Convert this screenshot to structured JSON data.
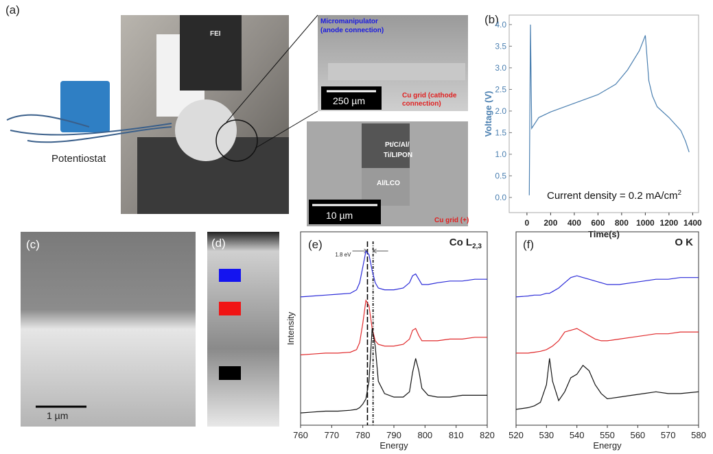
{
  "figure": {
    "panel_a": "(a)",
    "potentiostat": "Potentiostat",
    "fei": "FEI",
    "micromanipulator": [
      "Micromanipulator",
      "(anode connection)"
    ],
    "scale_top": "250 µm",
    "cathode": [
      "Cu grid (cathode",
      "connection)"
    ],
    "layers_top": [
      "Pt/C/Al/",
      "Ti/LIPON"
    ],
    "layer_lco": "Al/LCO",
    "scale_bottom": "10 µm",
    "cu_grid_plus": "Cu grid (+)",
    "panel_b": "(b)",
    "panel_c": "(c)",
    "scale_c": "1 µm",
    "panel_d": "(d)",
    "panel_e": "(e)",
    "panel_f": "(f)"
  },
  "chart_data": [
    {
      "type": "line",
      "xlabel": "Time(s)",
      "ylabel": "Voltage (V)",
      "annotation": "Current density = 0.2 mA/cm",
      "annotation_superscript": "2",
      "color": "#4a7fb0",
      "x": [
        20,
        30,
        40,
        100,
        200,
        400,
        600,
        750,
        850,
        950,
        1000,
        1030,
        1060,
        1100,
        1200,
        1300,
        1340,
        1370
      ],
      "values": [
        0.05,
        4.0,
        1.6,
        1.85,
        1.98,
        2.18,
        2.38,
        2.62,
        2.95,
        3.4,
        3.75,
        2.7,
        2.35,
        2.1,
        1.85,
        1.55,
        1.3,
        1.05
      ],
      "xlim": [
        -150,
        1450
      ],
      "xticks": [
        0,
        200,
        400,
        600,
        800,
        1000,
        1200,
        1400
      ],
      "ylim": [
        -0.35,
        4.22
      ],
      "yticks": [
        {
          "value": 0,
          "label": "0.0"
        },
        0.5,
        {
          "value": 1,
          "label": "1.0"
        },
        1.5,
        {
          "value": 2,
          "label": "2.0"
        },
        2.5,
        {
          "value": 3,
          "label": "3.0"
        },
        3.5,
        {
          "value": 4,
          "label": "4.0"
        }
      ]
    },
    {
      "type": "line",
      "title": "Co L",
      "title_subscript": "2,3",
      "xlabel": "Energy",
      "ylabel": "Intensity",
      "annotation": "1.8 eV",
      "vlines": [
        781.5,
        783.3
      ],
      "x": [
        760,
        764,
        768,
        772,
        776,
        778,
        779,
        780,
        781,
        782,
        783,
        784,
        785,
        787,
        790,
        793,
        795,
        796,
        797,
        798,
        799,
        801,
        804,
        808,
        812,
        816,
        820
      ],
      "series": [
        {
          "color": "#2a2ad8",
          "values": [
            6.8,
            6.85,
            6.9,
            6.95,
            7.0,
            7.2,
            7.6,
            8.5,
            9.4,
            9.2,
            8.3,
            7.6,
            7.3,
            7.2,
            7.2,
            7.3,
            7.6,
            8.0,
            8.1,
            7.8,
            7.5,
            7.5,
            7.6,
            7.7,
            7.7,
            7.8,
            7.8
          ]
        },
        {
          "color": "#e0282a",
          "values": [
            3.5,
            3.55,
            3.6,
            3.6,
            3.65,
            3.8,
            4.2,
            5.3,
            6.6,
            6.3,
            5.0,
            4.3,
            4.1,
            4.0,
            4.0,
            4.1,
            4.4,
            4.9,
            5.0,
            4.6,
            4.3,
            4.3,
            4.3,
            4.4,
            4.4,
            4.5,
            4.5
          ]
        },
        {
          "color": "#111111",
          "values": [
            0.2,
            0.25,
            0.3,
            0.3,
            0.35,
            0.4,
            0.5,
            0.7,
            1.0,
            2.0,
            5.0,
            4.0,
            2.0,
            1.3,
            1.1,
            1.1,
            1.4,
            2.5,
            3.3,
            2.6,
            1.6,
            1.2,
            1.1,
            1.1,
            1.2,
            1.2,
            1.2
          ]
        }
      ],
      "xlim": [
        760,
        820
      ],
      "xticks": [
        760,
        770,
        780,
        790,
        800,
        810,
        820
      ],
      "ylim": [
        -0.5,
        10.5
      ]
    },
    {
      "type": "line",
      "title": "O K",
      "xlabel": "Energy",
      "x": [
        520,
        524,
        526,
        528,
        530,
        531,
        532,
        534,
        536,
        538,
        540,
        542,
        544,
        546,
        548,
        550,
        554,
        558,
        562,
        566,
        570,
        574,
        580
      ],
      "series": [
        {
          "color": "#2a2ad8",
          "values": [
            6.8,
            6.85,
            6.9,
            6.9,
            7.0,
            7.0,
            7.1,
            7.3,
            7.6,
            7.9,
            8.0,
            7.9,
            7.8,
            7.7,
            7.6,
            7.5,
            7.5,
            7.6,
            7.7,
            7.8,
            7.8,
            7.9,
            7.9
          ]
        },
        {
          "color": "#e0282a",
          "values": [
            3.6,
            3.6,
            3.65,
            3.7,
            3.8,
            3.9,
            4.0,
            4.3,
            4.8,
            4.9,
            5.0,
            4.8,
            4.6,
            4.4,
            4.3,
            4.3,
            4.4,
            4.5,
            4.6,
            4.7,
            4.7,
            4.8,
            4.8
          ]
        },
        {
          "color": "#111111",
          "values": [
            0.4,
            0.5,
            0.6,
            0.8,
            1.8,
            3.3,
            2.0,
            0.9,
            1.4,
            2.2,
            2.4,
            2.9,
            2.6,
            1.8,
            1.3,
            1.0,
            1.1,
            1.2,
            1.3,
            1.4,
            1.3,
            1.3,
            1.4
          ]
        }
      ],
      "xlim": [
        520,
        580
      ],
      "xticks": [
        520,
        530,
        540,
        550,
        560,
        570,
        580
      ],
      "ylim": [
        -0.5,
        10.5
      ]
    }
  ]
}
